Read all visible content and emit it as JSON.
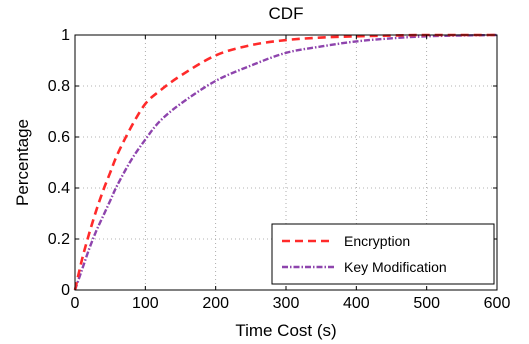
{
  "chart_data": {
    "type": "line",
    "title": "CDF",
    "xlabel": "Time Cost (s)",
    "ylabel": "Percentage",
    "xlim": [
      0,
      600
    ],
    "ylim": [
      0,
      1
    ],
    "xticks": [
      0,
      100,
      200,
      300,
      400,
      500,
      600
    ],
    "xtick_labels": [
      "0",
      "100",
      "200",
      "300",
      "400",
      "500",
      "600"
    ],
    "yticks": [
      0,
      0.2,
      0.4,
      0.6,
      0.8,
      1
    ],
    "ytick_labels": [
      "0",
      "0.2",
      "0.4",
      "0.6",
      "0.8",
      "1"
    ],
    "grid": true,
    "legend_position": "bottom-right",
    "series": [
      {
        "name": "Encryption",
        "color": "#ff2a2a",
        "style": "dashed",
        "x": [
          0,
          10,
          20,
          30,
          40,
          50,
          60,
          80,
          100,
          120,
          150,
          200,
          250,
          300,
          350,
          400,
          450,
          500,
          550,
          600
        ],
        "y": [
          0,
          0.12,
          0.22,
          0.31,
          0.39,
          0.46,
          0.53,
          0.64,
          0.73,
          0.78,
          0.84,
          0.92,
          0.96,
          0.98,
          0.99,
          0.995,
          0.998,
          1.0,
          1.0,
          1.0
        ]
      },
      {
        "name": "Key Modification",
        "color": "#8e44ad",
        "style": "dash-dot",
        "x": [
          0,
          10,
          20,
          30,
          40,
          50,
          60,
          80,
          100,
          120,
          150,
          200,
          250,
          300,
          350,
          400,
          450,
          500,
          550,
          600
        ],
        "y": [
          0,
          0.08,
          0.16,
          0.23,
          0.29,
          0.35,
          0.41,
          0.51,
          0.59,
          0.66,
          0.73,
          0.82,
          0.88,
          0.93,
          0.955,
          0.975,
          0.987,
          0.995,
          0.998,
          1.0
        ]
      }
    ]
  }
}
